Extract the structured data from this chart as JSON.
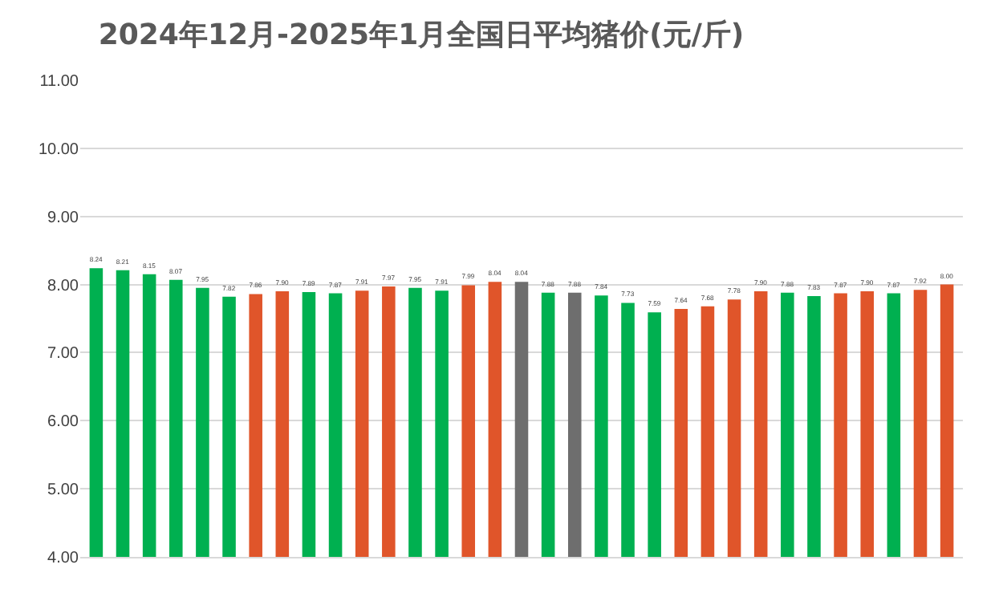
{
  "chart_data": {
    "type": "bar",
    "title": "2024年12月-2025年1月全国日平均猪价(元/斤)",
    "categories": [
      null,
      null,
      null,
      null,
      null,
      null,
      null,
      null,
      null,
      null,
      null,
      null,
      null,
      null,
      null,
      null,
      null,
      null,
      null,
      null,
      null,
      null,
      null,
      null,
      null,
      null,
      null,
      null,
      null,
      null,
      null,
      null,
      null
    ],
    "values": [
      8.24,
      8.21,
      8.15,
      8.07,
      7.95,
      7.82,
      7.86,
      7.9,
      7.89,
      7.87,
      7.91,
      7.97,
      7.95,
      7.91,
      7.99,
      8.04,
      8.04,
      7.88,
      7.88,
      7.84,
      7.73,
      7.59,
      7.64,
      7.68,
      7.78,
      7.9,
      7.88,
      7.83,
      7.87,
      7.9,
      7.87,
      7.92,
      8.0
    ],
    "colors": [
      "#00b050",
      "#00b050",
      "#00b050",
      "#00b050",
      "#00b050",
      "#00b050",
      "#e0552a",
      "#e0552a",
      "#00b050",
      "#00b050",
      "#e0552a",
      "#e0552a",
      "#00b050",
      "#00b050",
      "#e0552a",
      "#e0552a",
      "#6e6e6e",
      "#00b050",
      "#6e6e6e",
      "#00b050",
      "#00b050",
      "#00b050",
      "#e0552a",
      "#e0552a",
      "#e0552a",
      "#e0552a",
      "#00b050",
      "#00b050",
      "#e0552a",
      "#e0552a",
      "#00b050",
      "#e0552a",
      "#e0552a"
    ],
    "ylim": [
      4,
      11
    ],
    "yticks": [
      {
        "value": 4,
        "label": "4.00"
      },
      {
        "value": 5,
        "label": "5.00"
      },
      {
        "value": 6,
        "label": "6.00"
      },
      {
        "value": 7,
        "label": "7.00"
      },
      {
        "value": 8,
        "label": "8.00"
      },
      {
        "value": 9,
        "label": "9.00"
      },
      {
        "value": 10,
        "label": "10.00"
      },
      {
        "value": 11,
        "label": "11.00"
      }
    ],
    "value_labels": [
      "8.24",
      "8.21",
      "8.15",
      "8.07",
      "7.95",
      "7.82",
      "7.86",
      "7.90",
      "7.89",
      "7.87",
      "7.91",
      "7.97",
      "7.95",
      "7.91",
      "7.99",
      "8.04",
      "8.04",
      "7.88",
      "7.88",
      "7.84",
      "7.73",
      "7.59",
      "7.64",
      "7.68",
      "7.78",
      "7.90",
      "7.88",
      "7.83",
      "7.87",
      "7.90",
      "7.87",
      "7.92",
      "8.00"
    ],
    "grid": "y"
  }
}
